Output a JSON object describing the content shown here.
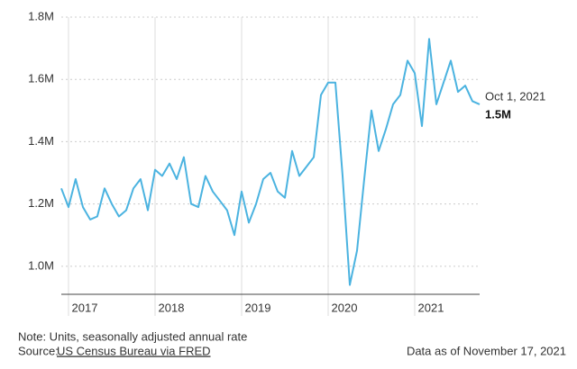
{
  "chart_data": {
    "type": "line",
    "x": [
      2016.917,
      2017,
      2017.083,
      2017.167,
      2017.25,
      2017.333,
      2017.417,
      2017.5,
      2017.583,
      2017.667,
      2017.75,
      2017.833,
      2017.917,
      2018,
      2018.083,
      2018.167,
      2018.25,
      2018.333,
      2018.417,
      2018.5,
      2018.583,
      2018.667,
      2018.75,
      2018.833,
      2018.917,
      2019,
      2019.083,
      2019.167,
      2019.25,
      2019.333,
      2019.417,
      2019.5,
      2019.583,
      2019.667,
      2019.75,
      2019.833,
      2019.917,
      2020,
      2020.083,
      2020.167,
      2020.25,
      2020.333,
      2020.417,
      2020.5,
      2020.583,
      2020.667,
      2020.75,
      2020.833,
      2020.917,
      2021,
      2021.083,
      2021.167,
      2021.25,
      2021.333,
      2021.417,
      2021.5,
      2021.583,
      2021.667,
      2021.75
    ],
    "series": [
      {
        "color": "#4bb3e0",
        "values": [
          1250000,
          1190000,
          1280000,
          1190000,
          1150000,
          1160000,
          1250000,
          1200000,
          1160000,
          1180000,
          1250000,
          1280000,
          1180000,
          1310000,
          1290000,
          1330000,
          1280000,
          1350000,
          1200000,
          1190000,
          1290000,
          1240000,
          1210000,
          1180000,
          1100000,
          1240000,
          1140000,
          1200000,
          1280000,
          1300000,
          1240000,
          1220000,
          1370000,
          1290000,
          1320000,
          1350000,
          1550000,
          1590000,
          1590000,
          1290000,
          940000,
          1050000,
          1280000,
          1500000,
          1370000,
          1440000,
          1520000,
          1550000,
          1660000,
          1620000,
          1450000,
          1730000,
          1520000,
          1590000,
          1660000,
          1560000,
          1580000,
          1530000,
          1520000
        ]
      }
    ],
    "xlim": [
      2016.917,
      2021.75
    ],
    "xticks": [
      2017,
      2018,
      2019,
      2020,
      2021
    ],
    "ylim": [
      910000,
      1800000
    ],
    "yticks": [
      {
        "value": 1000000,
        "label": "1.0M"
      },
      {
        "value": 1200000,
        "label": "1.2M"
      },
      {
        "value": 1400000,
        "label": "1.4M"
      },
      {
        "value": 1600000,
        "label": "1.6M"
      },
      {
        "value": 1800000,
        "label": "1.8M"
      }
    ],
    "grid": true,
    "annotation": {
      "text": "Oct 1, 2021",
      "value": 1520000,
      "label": "1.5M"
    },
    "note": "Note: Units, seasonally adjusted annual rate",
    "source_label": "Source:",
    "source_link": "US Census Bureau via FRED",
    "data_as_of": "Data as of November 17, 2021"
  }
}
